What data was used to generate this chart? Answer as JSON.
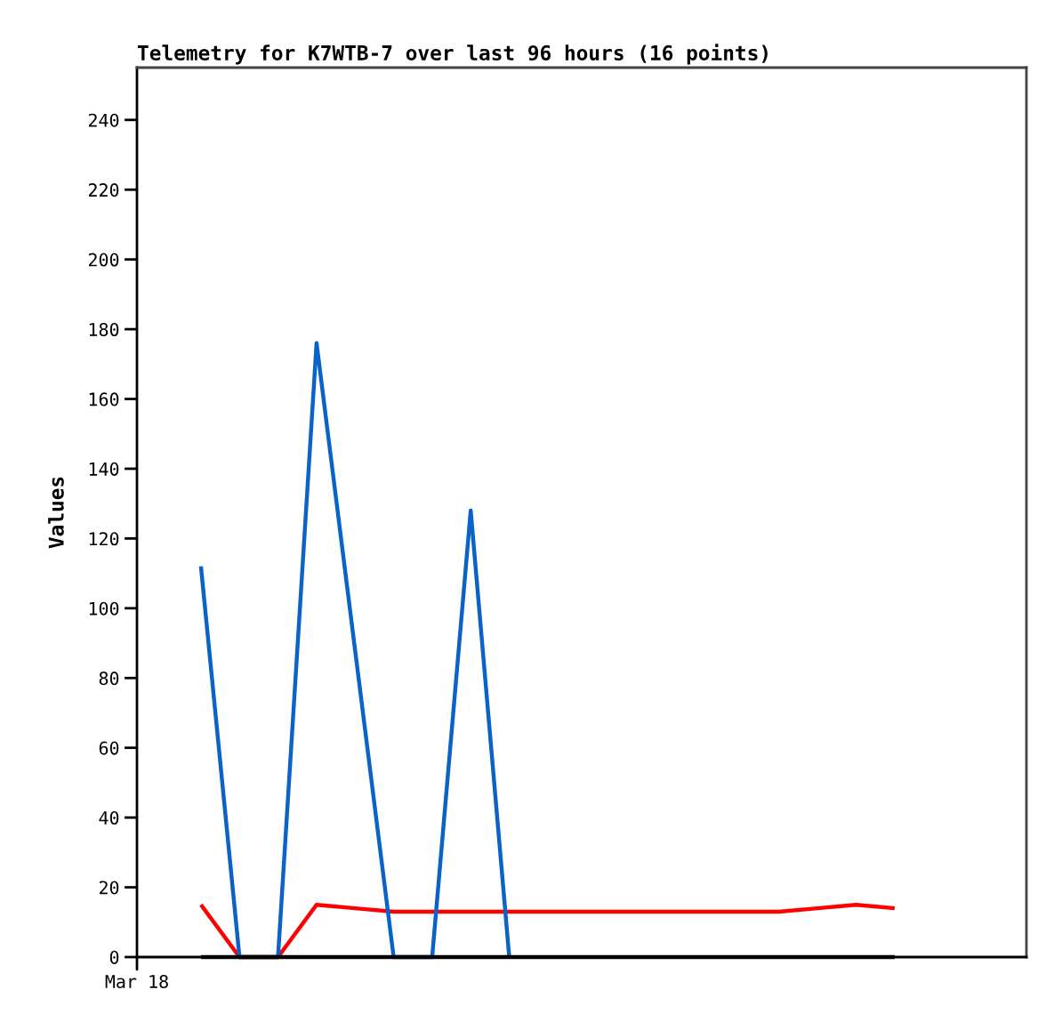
{
  "chart_data": {
    "type": "line",
    "title": "Telemetry for K7WTB-7 over last 96 hours (16 points)",
    "ylabel": "Values",
    "annotations": [
      "Mar 18"
    ],
    "categories": [
      null,
      null,
      null,
      null,
      null,
      null,
      null,
      null,
      null,
      null,
      null,
      null,
      null,
      null,
      null,
      null,
      null,
      null,
      null
    ],
    "ylim": [
      0,
      255
    ],
    "yticks": [
      0,
      20,
      40,
      60,
      80,
      100,
      120,
      140,
      160,
      180,
      200,
      220,
      240
    ],
    "grid": false,
    "marker": "none",
    "line_style": "solid",
    "series": [
      {
        "color": "#ff0000",
        "values": [
          15,
          0,
          0,
          15,
          14,
          13,
          13,
          13,
          13,
          13,
          13,
          13,
          13,
          13,
          13,
          13,
          14,
          15,
          14
        ]
      },
      {
        "color": "#0a64c8",
        "values": [
          112,
          0,
          0,
          176,
          88,
          0,
          0,
          128,
          0,
          null,
          null,
          null,
          null,
          null,
          null,
          null,
          null,
          null,
          null
        ]
      },
      {
        "color": "#000000",
        "values": [
          0,
          0,
          0,
          0,
          0,
          0,
          0,
          0,
          0,
          0,
          0,
          0,
          0,
          0,
          0,
          0,
          0,
          0,
          0
        ]
      }
    ]
  }
}
